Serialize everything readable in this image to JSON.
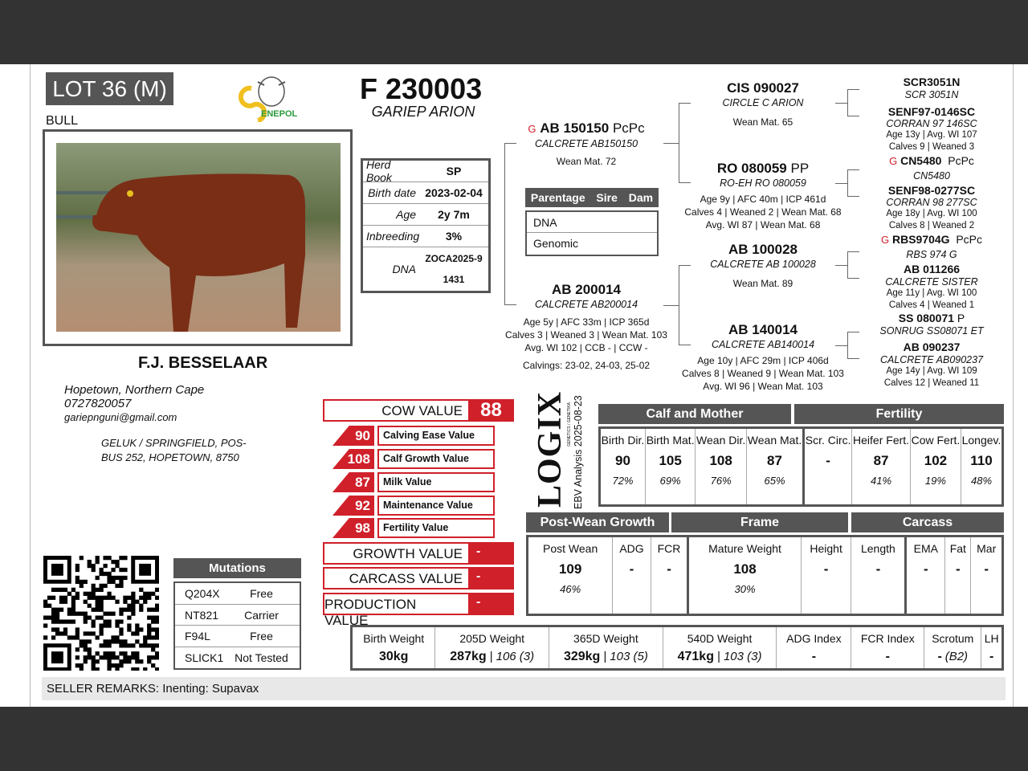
{
  "lot": {
    "label": "LOT 36 (M)",
    "sex": "BULL",
    "logo_text": "SENEPOL"
  },
  "animal": {
    "id": "F 230003",
    "name": "GARIEP ARION"
  },
  "info": [
    {
      "k": "Herd Book",
      "v": "SP"
    },
    {
      "k": "Birth date",
      "v": "2023-02-04"
    },
    {
      "k": "Age",
      "v": "2y 7m"
    },
    {
      "k": "Inbreeding",
      "v": "3%"
    },
    {
      "k": "DNA",
      "v": "ZOCA2025-91431"
    }
  ],
  "parentage": {
    "title": "Parentage",
    "sire": "Sire",
    "dam": "Dam",
    "rows": [
      "DNA",
      "Genomic"
    ]
  },
  "breeder": {
    "name": "F.J. BESSELAAR",
    "location": "Hopetown, Northern Cape",
    "phone": "0727820057",
    "email": "gariepnguni@gmail.com",
    "address1": "GELUK / SPRINGFIELD, POS-",
    "address2": "BUS 252, HOPETOWN, 8750"
  },
  "pedigree": {
    "sire": {
      "gt": "G",
      "id": "AB 150150",
      "poll": "PcPc",
      "name": "CALCRETE AB150150",
      "l1": "Wean Mat. 72"
    },
    "dam": {
      "id": "AB 200014",
      "name": "CALCRETE AB200014",
      "l1": "Age 5y | AFC 33m | ICP 365d",
      "l2": "Calves 3 | Weaned 3 | Wean Mat. 103",
      "l3": "Avg. WI 102 | CCB - | CCW -",
      "l4": "Calvings: 23-02, 24-03, 25-02"
    },
    "ss": {
      "id": "CIS 090027",
      "name": "CIRCLE C ARION",
      "l1": "Wean Mat. 65"
    },
    "sd": {
      "id": "RO 080059",
      "poll": "PP",
      "name": "RO-EH RO 080059",
      "l1": "Age 9y | AFC 40m | ICP 461d",
      "l2": "Calves 4 | Weaned 2 | Wean Mat. 68",
      "l3": "Avg. WI 87 | Wean Mat. 68"
    },
    "ds": {
      "id": "AB 100028",
      "name": "CALCRETE AB 100028",
      "l1": "Wean Mat. 89"
    },
    "dd": {
      "id": "AB 140014",
      "name": "CALCRETE AB140014",
      "l1": "Age 10y | AFC 29m | ICP 406d",
      "l2": "Calves 8 | Weaned 9 | Wean Mat. 103",
      "l3": "Avg. WI 96 | Wean Mat. 103"
    },
    "sss": {
      "id": "SCR3051N",
      "name": "SCR 3051N"
    },
    "ssd": {
      "id": "SENF97-0146SC",
      "name": "CORRAN 97 146SC",
      "l1": "Age 13y | Avg. WI 107",
      "l2": "Calves 9 | Weaned 3"
    },
    "sds": {
      "gt": "G",
      "id": "CN5480",
      "poll": "PcPc",
      "name": "CN5480"
    },
    "sdd": {
      "id": "SENF98-0277SC",
      "name": "CORRAN 98 277SC",
      "l1": "Age 18y | Avg. WI 100",
      "l2": "Calves 8 | Weaned 2"
    },
    "dss": {
      "gt": "G",
      "id": "RBS9704G",
      "poll": "PcPc",
      "name": "RBS 974 G"
    },
    "dsd": {
      "id": "AB 011266",
      "name": "CALCRETE SISTER",
      "l1": "Age 11y | Avg. WI 100",
      "l2": "Calves 4 | Weaned 1"
    },
    "dds": {
      "id": "SS 080071",
      "poll": "P",
      "name": "SONRUG SS08071 ET"
    },
    "ddd": {
      "id": "AB 090237",
      "name": "CALCRETE AB090237",
      "l1": "Age 14y | Avg. WI 109",
      "l2": "Calves 12 | Weaned 11"
    }
  },
  "values": {
    "cow": {
      "label": "COW VALUE",
      "value": "88"
    },
    "sub": [
      {
        "v": "90",
        "l": "Calving Ease Value"
      },
      {
        "v": "108",
        "l": "Calf Growth Value"
      },
      {
        "v": "87",
        "l": "Milk Value"
      },
      {
        "v": "92",
        "l": "Maintenance Value"
      },
      {
        "v": "98",
        "l": "Fertility Value"
      }
    ],
    "growth": {
      "label": "GROWTH VALUE",
      "value": "-"
    },
    "carcass": {
      "label": "CARCASS VALUE",
      "value": "-"
    },
    "production": {
      "label": "PRODUCTION VALUE",
      "value": "-"
    }
  },
  "logix": {
    "logo": "LOGIX",
    "sub": "GENETICS / GENETIKA",
    "analysis": "EBV Analysis 2025-08-23"
  },
  "ebv": {
    "calf_mother": {
      "title": "Calf and Mother",
      "cols": [
        {
          "h": "Birth Dir.",
          "v": "90",
          "p": "72%"
        },
        {
          "h": "Birth Mat.",
          "v": "105",
          "p": "69%"
        },
        {
          "h": "Wean Dir.",
          "v": "108",
          "p": "76%"
        },
        {
          "h": "Wean Mat.",
          "v": "87",
          "p": "65%"
        }
      ]
    },
    "fertility": {
      "title": "Fertility",
      "cols": [
        {
          "h": "Scr. Circ.",
          "v": "-",
          "p": ""
        },
        {
          "h": "Heifer Fert.",
          "v": "87",
          "p": "41%"
        },
        {
          "h": "Cow Fert.",
          "v": "102",
          "p": "19%"
        },
        {
          "h": "Longev.",
          "v": "110",
          "p": "48%"
        }
      ]
    },
    "post_wean": {
      "title": "Post-Wean Growth",
      "cols": [
        {
          "h": "Post Wean",
          "v": "109",
          "p": "46%"
        },
        {
          "h": "ADG",
          "v": "-",
          "p": ""
        },
        {
          "h": "FCR",
          "v": "-",
          "p": ""
        }
      ]
    },
    "frame": {
      "title": "Frame",
      "cols": [
        {
          "h": "Mature Weight",
          "v": "108",
          "p": "30%"
        },
        {
          "h": "Height",
          "v": "-",
          "p": ""
        },
        {
          "h": "Length",
          "v": "-",
          "p": ""
        }
      ]
    },
    "carcass": {
      "title": "Carcass",
      "cols": [
        {
          "h": "EMA",
          "v": "-",
          "p": ""
        },
        {
          "h": "Fat",
          "v": "-",
          "p": ""
        },
        {
          "h": "Mar",
          "v": "-",
          "p": ""
        }
      ]
    }
  },
  "weights": [
    {
      "h": "Birth Weight",
      "v": "30kg",
      "x": ""
    },
    {
      "h": "205D Weight",
      "v": "287kg",
      "x": "106 (3)"
    },
    {
      "h": "365D Weight",
      "v": "329kg",
      "x": "103 (5)"
    },
    {
      "h": "540D Weight",
      "v": "471kg",
      "x": "103 (3)"
    },
    {
      "h": "ADG Index",
      "v": "-",
      "x": ""
    },
    {
      "h": "FCR Index",
      "v": "-",
      "x": ""
    },
    {
      "h": "Scrotum",
      "v": "-",
      "x": "(B2)"
    },
    {
      "h": "LH",
      "v": "-",
      "x": ""
    }
  ],
  "mutations": {
    "title": "Mutations",
    "rows": [
      {
        "k": "Q204X",
        "v": "Free"
      },
      {
        "k": "NT821",
        "v": "Carrier"
      },
      {
        "k": "F94L",
        "v": "Free"
      },
      {
        "k": "SLICK1",
        "v": "Not Tested"
      }
    ]
  },
  "remarks": {
    "label": "SELLER REMARKS:",
    "text": "Inenting: Supavax"
  },
  "colors": {
    "accent": "#d0202a",
    "header": "#555555",
    "remarks_bg": "#e8e8e8"
  }
}
